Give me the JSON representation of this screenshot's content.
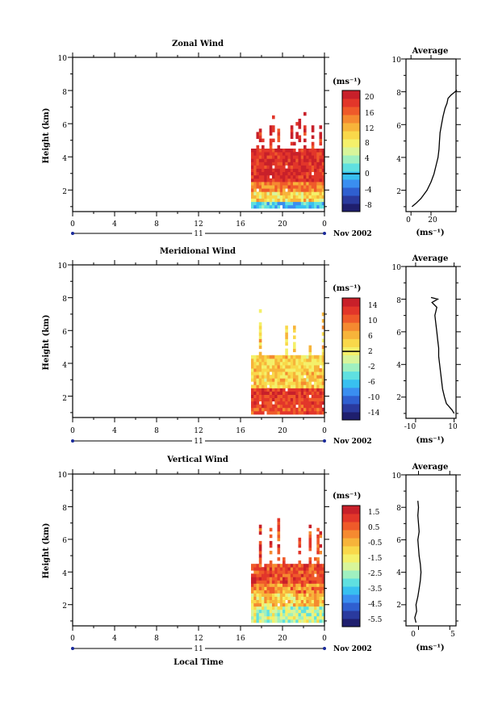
{
  "x_axis": {
    "ticks": [
      "0",
      "4",
      "8",
      "12",
      "16",
      "20",
      "0"
    ],
    "day_label": "11",
    "date_label": "Nov 2002",
    "label": "Local Time"
  },
  "chart_data": [
    {
      "type": "heatmap",
      "title": "Zonal Wind",
      "ylabel": "Height (km)",
      "xlim": [
        0,
        24
      ],
      "ylim": [
        0.7,
        10
      ],
      "yticks": [
        "10",
        "8",
        "6",
        "4",
        "2"
      ],
      "colorbar": {
        "unit": "(ms⁻¹)",
        "ticks": [
          "20",
          "16",
          "12",
          "8",
          "4",
          "0",
          "-4",
          "-8"
        ],
        "range": [
          -10,
          22
        ],
        "zero_line": 0
      },
      "data_extent": {
        "x": [
          17,
          24
        ],
        "y": [
          0.9,
          4.4
        ]
      },
      "profile": {
        "title": "Average",
        "xticks": [
          "0",
          "20"
        ],
        "xlim": [
          -5,
          45
        ],
        "xlabel": "(ms⁻¹)",
        "height": [
          1.0,
          1.2,
          1.5,
          2.0,
          2.5,
          3.0,
          3.5,
          4.0,
          4.5,
          5.0,
          5.5,
          6.0,
          6.5,
          7.0,
          7.3,
          7.6,
          7.8,
          8.0,
          8.1
        ],
        "value": [
          1.0,
          5.0,
          10.0,
          16.0,
          20.0,
          23.0,
          25.0,
          27.0,
          28.0,
          28.5,
          29.0,
          30.5,
          32.0,
          34.0,
          36.0,
          37.0,
          40.0,
          44.0,
          46.0
        ]
      }
    },
    {
      "type": "heatmap",
      "title": "Meridional Wind",
      "ylabel": "Height (km)",
      "xlim": [
        0,
        24
      ],
      "ylim": [
        0.7,
        10
      ],
      "yticks": [
        "10",
        "8",
        "6",
        "4",
        "2"
      ],
      "colorbar": {
        "unit": "(ms⁻¹)",
        "ticks": [
          "14",
          "10",
          "6",
          "2",
          "-2",
          "-6",
          "-10",
          "-14"
        ],
        "range": [
          -16,
          16
        ],
        "zero_line": 2
      },
      "data_extent": {
        "x": [
          17,
          24
        ],
        "y": [
          0.9,
          4.4
        ]
      },
      "profile": {
        "title": "Average",
        "xticks": [
          "-10",
          "10"
        ],
        "xlim": [
          -15,
          11
        ],
        "xlabel": "(ms⁻¹)",
        "height": [
          1.0,
          1.2,
          1.4,
          1.6,
          2.0,
          2.5,
          3.0,
          3.5,
          4.0,
          4.5,
          5.0,
          5.5,
          6.0,
          6.5,
          7.0,
          7.5,
          7.8,
          8.0,
          8.1
        ],
        "value": [
          10.0,
          9.0,
          7.5,
          6.0,
          5.0,
          4.0,
          3.5,
          3.0,
          2.5,
          2.0,
          2.0,
          1.5,
          1.0,
          0.5,
          0.0,
          1.0,
          -1.5,
          1.5,
          -2.0
        ]
      }
    },
    {
      "type": "heatmap",
      "title": "Vertical Wind",
      "ylabel": "Height (km)",
      "xlim": [
        0,
        24
      ],
      "ylim": [
        0.7,
        10
      ],
      "yticks": [
        "10",
        "8",
        "6",
        "4",
        "2"
      ],
      "colorbar": {
        "unit": "(ms⁻¹)",
        "ticks": [
          "1.5",
          "0.5",
          "-0.5",
          "-1.5",
          "-2.5",
          "-3.5",
          "-4.5",
          "-5.5"
        ],
        "range": [
          -6.5,
          2.0
        ],
        "zero_line": null
      },
      "data_extent": {
        "x": [
          17,
          24
        ],
        "y": [
          0.9,
          4.4
        ]
      },
      "profile": {
        "title": "Average",
        "xticks": [
          "0",
          "5"
        ],
        "xlim": [
          -2,
          6
        ],
        "xlabel": "(ms⁻¹)",
        "height": [
          0.9,
          1.2,
          1.6,
          2.0,
          2.5,
          3.0,
          3.5,
          4.0,
          4.5,
          5.0,
          5.5,
          6.0,
          6.5,
          7.0,
          7.5,
          8.0,
          8.4
        ],
        "value": [
          -0.4,
          -0.6,
          -0.3,
          -0.4,
          -0.1,
          0.1,
          0.3,
          0.4,
          0.3,
          0.1,
          0.0,
          -0.1,
          0.1,
          0.0,
          -0.1,
          0.0,
          -0.1
        ]
      }
    }
  ]
}
